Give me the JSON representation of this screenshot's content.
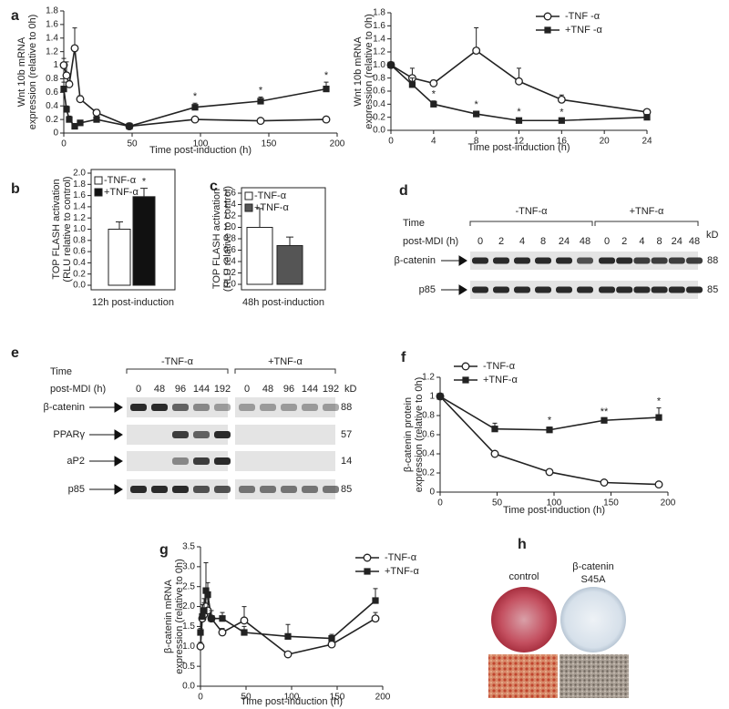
{
  "chart_data": [
    {
      "type": "line",
      "panel": "a",
      "x": [
        0,
        2,
        4,
        8,
        12,
        24,
        48,
        96,
        144,
        192
      ],
      "series": [
        {
          "name": "-TNF -α",
          "color": "#222222",
          "marker": "open-circle",
          "values": [
            1.0,
            0.85,
            0.72,
            1.25,
            0.5,
            0.3,
            0.1,
            0.2,
            0.18,
            0.2
          ],
          "errors": [
            0.1,
            0.2,
            0.05,
            0.3,
            0.05,
            0.05,
            0.03,
            0.03,
            0.02,
            0.02
          ]
        },
        {
          "name": "+TNF -α",
          "color": "#222222",
          "marker": "filled-square",
          "values": [
            0.65,
            0.35,
            0.2,
            0.1,
            0.15,
            0.2,
            0.1,
            0.38,
            0.47,
            0.65
          ],
          "errors": [
            0.1,
            0.05,
            0.05,
            0.03,
            0.03,
            0.05,
            0.05,
            0.06,
            0.06,
            0.1
          ],
          "significance": [
            null,
            null,
            null,
            null,
            null,
            null,
            null,
            "*",
            "*",
            "*"
          ]
        }
      ],
      "xlim": [
        0,
        200
      ],
      "xticks": [
        0,
        50,
        100,
        150,
        200
      ],
      "ylim": [
        0,
        1.8
      ],
      "yticks": [
        0,
        0.2,
        0.4,
        0.6,
        0.8,
        1,
        1.2,
        1.4,
        1.6,
        1.8
      ],
      "x_label": "Time post-induction (h)",
      "y_label": [
        "Wnt 10b mRNA",
        "expression (relative to 0h)"
      ]
    },
    {
      "type": "line",
      "x": [
        0,
        2,
        4,
        8,
        12,
        16,
        24
      ],
      "series": [
        {
          "name": "-TNF -α",
          "color": "#222222",
          "marker": "open-circle",
          "values": [
            1.0,
            0.8,
            0.72,
            1.22,
            0.75,
            0.47,
            0.28
          ],
          "errors": [
            0,
            0.15,
            0.05,
            0.35,
            0.2,
            0.07,
            0.02
          ]
        },
        {
          "name": "+TNF -α",
          "color": "#222222",
          "marker": "filled-square",
          "values": [
            1.0,
            0.7,
            0.4,
            0.25,
            0.15,
            0.15,
            0.2
          ],
          "errors": [
            0,
            0.1,
            0.05,
            0.04,
            0.03,
            0.02,
            0.03
          ],
          "significance": [
            null,
            null,
            "*",
            "*",
            "*",
            "*",
            null
          ]
        }
      ],
      "xlim": [
        0,
        24
      ],
      "xticks": [
        0,
        4,
        8,
        12,
        16,
        20,
        24
      ],
      "ylim": [
        0,
        1.8
      ],
      "yticks": [
        {
          "value": 0,
          "label": "0.0"
        },
        0.2,
        0.4,
        0.6,
        0.8,
        {
          "value": 1,
          "label": "1.0"
        },
        1.2,
        1.4,
        1.6,
        1.8
      ],
      "x_label": "Time post-induction (h)",
      "y_label": [
        "Wnt 10b mRNA",
        "expression (relative to 0h)"
      ],
      "legend": "upper right"
    },
    {
      "type": "bar",
      "panel": "b",
      "categories": [
        "-TNF-α",
        "+TNF-α"
      ],
      "values": [
        1.0,
        1.58
      ],
      "errors": [
        0.13,
        0.15
      ],
      "colors": [
        "#ffffff",
        "#111111"
      ],
      "significance": [
        null,
        "*"
      ],
      "ylim": [
        0,
        2
      ],
      "yticks": [
        {
          "value": 0,
          "label": "0.0"
        },
        0.2,
        0.4,
        0.6,
        0.8,
        {
          "value": 1,
          "label": "1.0"
        },
        1.2,
        1.4,
        1.6,
        1.8,
        {
          "value": 2,
          "label": "2.0"
        }
      ],
      "x_label": "12h post-induction",
      "y_label": [
        "TOP FLASH activation",
        "(RLU relative to control)"
      ],
      "legend": "upper left"
    },
    {
      "type": "bar",
      "panel": "c",
      "categories": [
        "-TNF-α",
        "+TNF-α"
      ],
      "values": [
        1.0,
        0.68
      ],
      "errors": [
        0.33,
        0.15
      ],
      "colors": [
        "#ffffff",
        "#555555"
      ],
      "ylim": [
        0,
        1.6
      ],
      "yticks": [
        {
          "value": 0,
          "label": "0.0"
        },
        0.2,
        0.4,
        0.6,
        0.8,
        {
          "value": 1,
          "label": "1.0"
        },
        1.2,
        1.4,
        1.6
      ],
      "x_label": "48h post-induction",
      "y_label": [
        "TOP FLASH activation",
        "(RLU relative to control)"
      ],
      "legend": "upper left"
    },
    {
      "type": "line",
      "panel": "f",
      "x": [
        0,
        48,
        96,
        144,
        192
      ],
      "series": [
        {
          "name": "-TNF-α",
          "color": "#222222",
          "marker": "open-circle",
          "values": [
            1.0,
            0.4,
            0.21,
            0.1,
            0.08
          ],
          "errors": [
            0,
            0.02,
            0.02,
            0.02,
            0.02
          ]
        },
        {
          "name": "+TNF-α",
          "color": "#222222",
          "marker": "filled-square",
          "values": [
            1.0,
            0.66,
            0.65,
            0.75,
            0.78
          ],
          "errors": [
            0,
            0.06,
            0.03,
            0.02,
            0.1
          ],
          "significance": [
            null,
            null,
            "*",
            "**",
            "*"
          ]
        }
      ],
      "xlim": [
        0,
        200
      ],
      "xticks": [
        0,
        50,
        100,
        150,
        200
      ],
      "ylim": [
        0,
        1.2
      ],
      "yticks": [
        0,
        0.2,
        0.4,
        0.6,
        0.8,
        1,
        1.2
      ],
      "x_label": "Time post-induction (h)",
      "y_label": [
        "β-catenin protein",
        "expression (relative to 0h)"
      ],
      "legend": "upper left"
    },
    {
      "type": "line",
      "panel": "g",
      "x": [
        0,
        2,
        4,
        6,
        8,
        12,
        24,
        48,
        96,
        144,
        192
      ],
      "series": [
        {
          "name": "-TNF-α",
          "color": "#222222",
          "marker": "open-circle",
          "values": [
            1.0,
            1.7,
            1.8,
            2.0,
            1.9,
            1.7,
            1.35,
            1.65,
            0.8,
            1.05,
            1.7
          ],
          "errors": [
            0.1,
            0.2,
            0.3,
            0.2,
            0.3,
            0.2,
            0.1,
            0.35,
            0.05,
            0.05,
            0.15
          ]
        },
        {
          "name": "+TNF-α",
          "color": "#222222",
          "marker": "filled-square",
          "values": [
            1.35,
            1.75,
            1.9,
            2.4,
            2.3,
            1.7,
            1.7,
            1.35,
            1.25,
            1.2,
            2.15
          ],
          "errors": [
            0.1,
            0.3,
            0.3,
            0.7,
            0.3,
            0.2,
            0.15,
            0.15,
            0.3,
            0.1,
            0.3
          ]
        }
      ],
      "xlim": [
        0,
        200
      ],
      "xticks": [
        0,
        50,
        100,
        150,
        200
      ],
      "ylim": [
        0,
        3.5
      ],
      "yticks": [
        {
          "value": 0,
          "label": "0.0"
        },
        0.5,
        {
          "value": 1,
          "label": "1.0"
        },
        1.5,
        {
          "value": 2,
          "label": "2.0"
        },
        2.5,
        {
          "value": 3,
          "label": "3.0"
        },
        3.5
      ],
      "x_label": "Time post-induction (h)",
      "y_label": [
        "β-catenin mRNA",
        "expression (relative to 0h)"
      ],
      "legend": "upper right"
    }
  ],
  "blots": [
    {
      "panel": "d",
      "row_header": [
        "Time",
        "post-MDI (h)"
      ],
      "groups": [
        "-TNF-α",
        "+TNF-α"
      ],
      "lanes": [
        0,
        2,
        4,
        8,
        24,
        48,
        0,
        2,
        4,
        8,
        24,
        48
      ],
      "kd_header": "kD",
      "rows": [
        {
          "label": "β-catenin",
          "kd": "88"
        },
        {
          "label": "p85",
          "kd": "85"
        }
      ]
    },
    {
      "panel": "e",
      "row_header": [
        "Time",
        "post-MDI (h)"
      ],
      "groups": [
        "-TNF-α",
        "+TNF-α"
      ],
      "lanes": [
        0,
        48,
        96,
        144,
        192,
        0,
        48,
        96,
        144,
        192
      ],
      "kd_header": "kD",
      "rows": [
        {
          "label": "β-catenin",
          "kd": "88"
        },
        {
          "label": "PPARγ",
          "kd": "57"
        },
        {
          "label": "aP2",
          "kd": "14"
        },
        {
          "label": "p85",
          "kd": "85"
        }
      ]
    }
  ],
  "panel_h": {
    "panel": "h",
    "images": [
      {
        "label": [
          "control"
        ]
      },
      {
        "label": [
          "β-catenin",
          "S45A"
        ]
      }
    ]
  }
}
